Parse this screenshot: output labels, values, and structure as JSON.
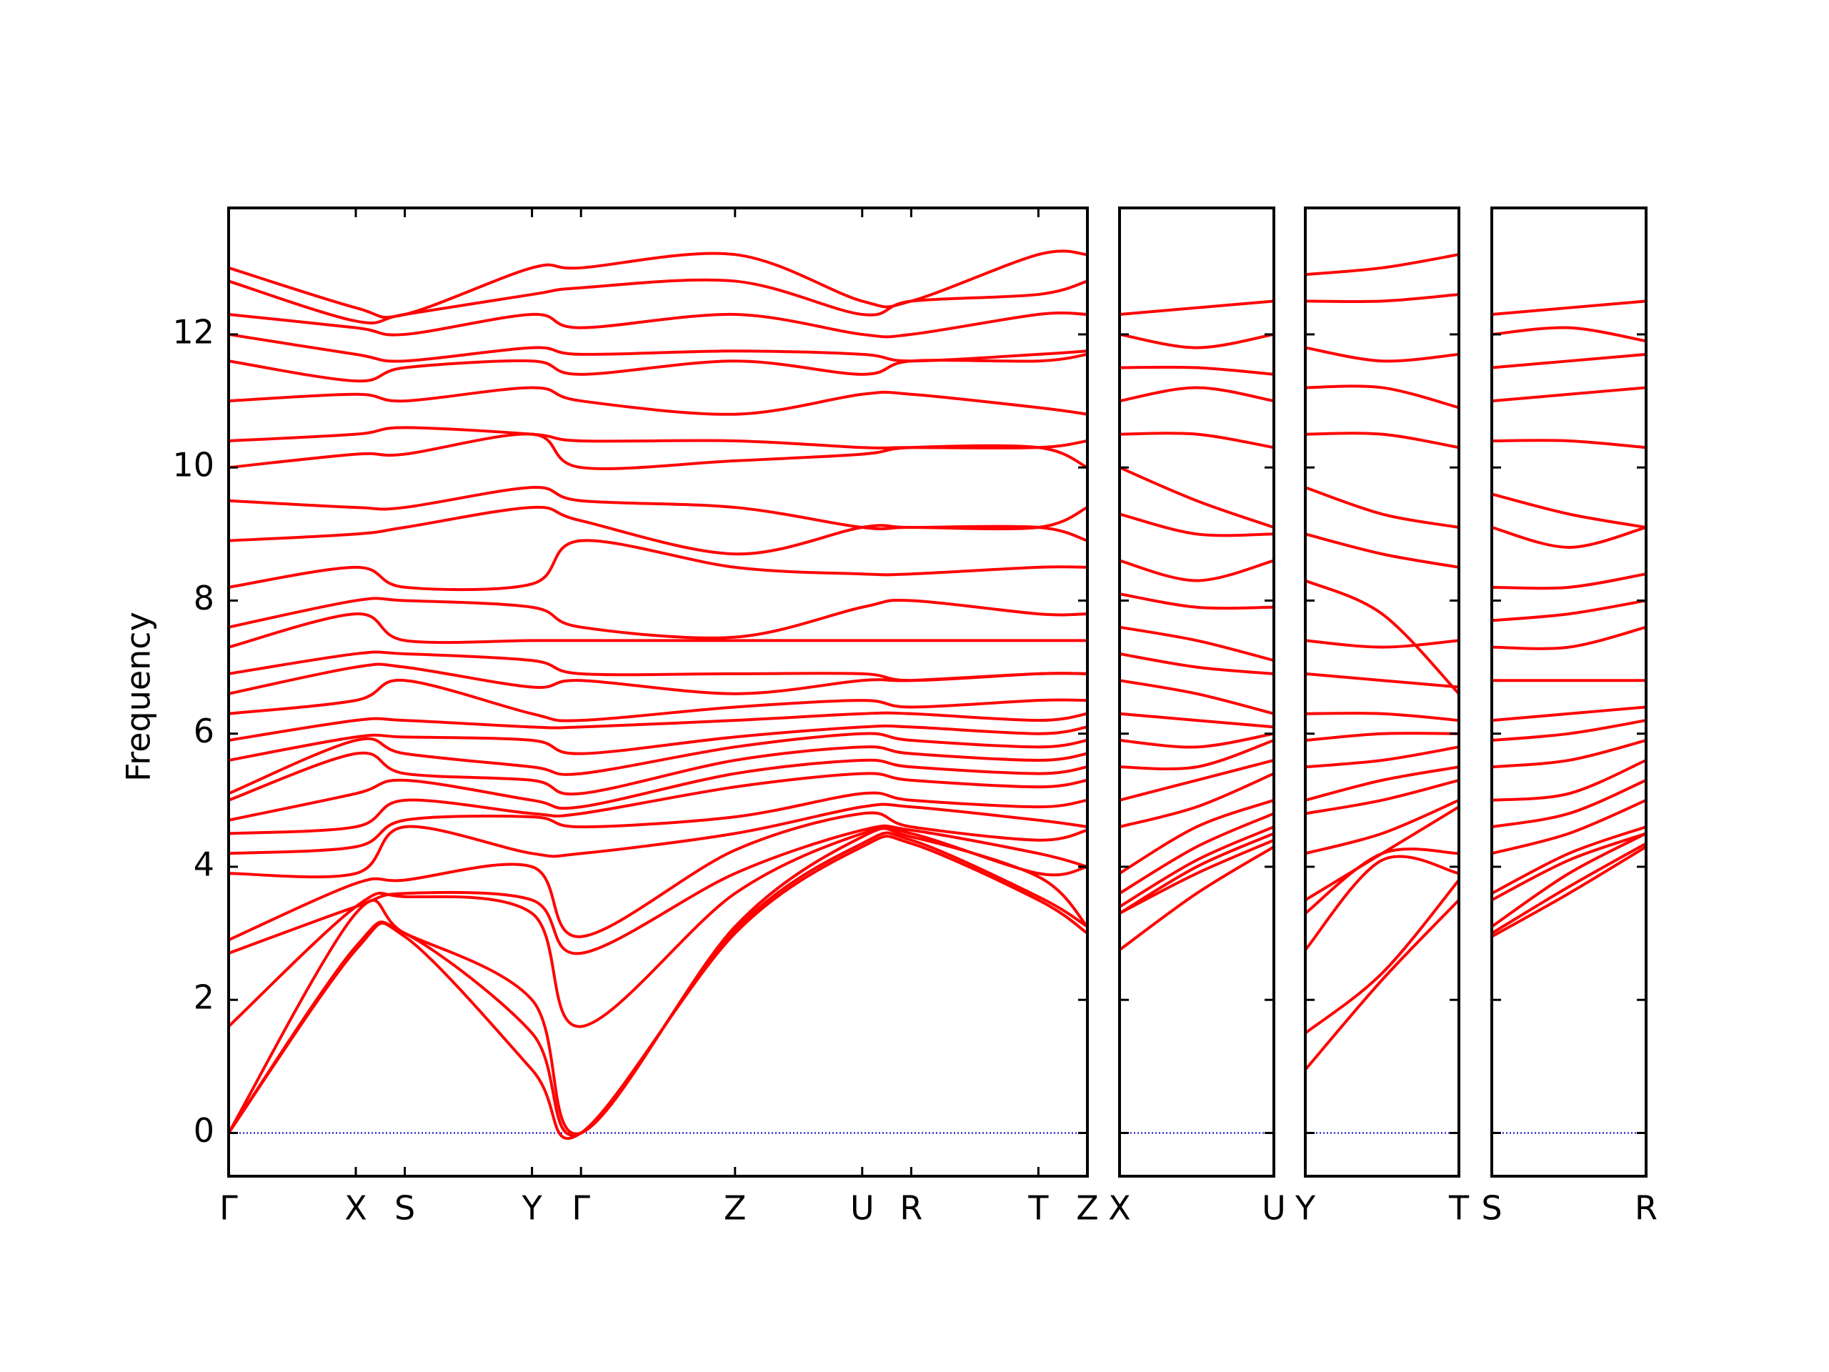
{
  "chart_data": [
    {
      "type": "line",
      "ylabel": "Frequency",
      "color": "#ff0000",
      "ylim": [
        -0.65,
        13.9
      ],
      "yticks": [
        0,
        2,
        4,
        6,
        8,
        10,
        12
      ],
      "show_ytick_labels": true,
      "hline": {
        "value": 0,
        "color": "#0000cc"
      },
      "xlim": [
        0,
        7.36
      ],
      "xticks": [
        {
          "value": 0,
          "label": "Γ"
        },
        {
          "value": 1.09,
          "label": "X"
        },
        {
          "value": 1.51,
          "label": "S"
        },
        {
          "value": 2.6,
          "label": "Y"
        },
        {
          "value": 3.02,
          "label": "Γ"
        },
        {
          "value": 4.34,
          "label": "Z"
        },
        {
          "value": 5.43,
          "label": "U"
        },
        {
          "value": 5.85,
          "label": "R"
        },
        {
          "value": 6.94,
          "label": "T"
        },
        {
          "value": 7.36,
          "label": "Z"
        }
      ],
      "x": [
        0,
        1.09,
        1.51,
        2.6,
        3.02,
        4.34,
        5.43,
        5.85,
        6.94,
        7.36
      ],
      "series": [
        {
          "values": [
            0,
            2.75,
            2.95,
            0.95,
            0,
            3.0,
            4.3,
            4.35,
            3.5,
            3.0
          ]
        },
        {
          "values": [
            0,
            2.8,
            3.0,
            1.5,
            0,
            3.05,
            4.35,
            4.4,
            3.55,
            3.1
          ]
        },
        {
          "values": [
            0,
            3.3,
            3.0,
            2.0,
            0,
            3.1,
            4.45,
            4.45,
            3.85,
            3.1
          ]
        },
        {
          "values": [
            1.6,
            3.4,
            3.55,
            3.3,
            1.6,
            3.6,
            4.5,
            4.5,
            3.9,
            4.0
          ]
        },
        {
          "values": [
            2.7,
            3.4,
            3.6,
            3.5,
            2.7,
            3.9,
            4.55,
            4.55,
            4.2,
            4.0
          ]
        },
        {
          "values": [
            2.9,
            3.75,
            3.8,
            4.0,
            2.95,
            4.25,
            4.8,
            4.6,
            4.4,
            4.55
          ]
        },
        {
          "values": [
            3.9,
            3.9,
            4.6,
            4.2,
            4.2,
            4.5,
            4.9,
            4.9,
            4.7,
            4.6
          ]
        },
        {
          "values": [
            4.2,
            4.3,
            4.7,
            4.75,
            4.6,
            4.75,
            5.1,
            5.0,
            4.9,
            5.0
          ]
        },
        {
          "values": [
            4.5,
            4.6,
            5.0,
            4.8,
            4.8,
            5.2,
            5.4,
            5.3,
            5.2,
            5.3
          ]
        },
        {
          "values": [
            4.7,
            5.1,
            5.3,
            5.0,
            4.9,
            5.4,
            5.6,
            5.5,
            5.4,
            5.5
          ]
        },
        {
          "values": [
            5.0,
            5.7,
            5.4,
            5.3,
            5.1,
            5.6,
            5.8,
            5.7,
            5.6,
            5.7
          ]
        },
        {
          "values": [
            5.1,
            5.9,
            5.7,
            5.5,
            5.4,
            5.8,
            6.0,
            5.9,
            5.8,
            5.9
          ]
        },
        {
          "values": [
            5.6,
            5.95,
            5.95,
            5.9,
            5.7,
            5.95,
            6.1,
            6.1,
            6.0,
            6.1
          ]
        },
        {
          "values": [
            5.9,
            6.2,
            6.2,
            6.1,
            6.1,
            6.2,
            6.3,
            6.3,
            6.2,
            6.3
          ]
        },
        {
          "values": [
            6.3,
            6.5,
            6.8,
            6.3,
            6.2,
            6.4,
            6.5,
            6.4,
            6.5,
            6.5
          ]
        },
        {
          "values": [
            6.6,
            7.0,
            7.0,
            6.7,
            6.8,
            6.6,
            6.8,
            6.8,
            6.9,
            6.9
          ]
        },
        {
          "values": [
            6.9,
            7.2,
            7.2,
            7.1,
            6.9,
            6.9,
            6.9,
            6.8,
            6.9,
            6.9
          ]
        },
        {
          "values": [
            7.3,
            7.8,
            7.4,
            7.4,
            7.4,
            7.4,
            7.4,
            7.4,
            7.4,
            7.4
          ]
        },
        {
          "values": [
            7.6,
            8.0,
            8.0,
            7.9,
            7.6,
            7.45,
            7.9,
            8.0,
            7.8,
            7.8
          ]
        },
        {
          "values": [
            8.2,
            8.5,
            8.2,
            8.25,
            8.9,
            8.5,
            8.4,
            8.4,
            8.5,
            8.5
          ]
        },
        {
          "values": [
            8.9,
            9.0,
            9.1,
            9.4,
            9.2,
            8.7,
            9.1,
            9.1,
            9.1,
            8.9
          ]
        },
        {
          "values": [
            9.5,
            9.4,
            9.4,
            9.7,
            9.5,
            9.4,
            9.1,
            9.1,
            9.1,
            9.4
          ]
        },
        {
          "values": [
            10.0,
            10.2,
            10.2,
            10.5,
            10.0,
            10.1,
            10.2,
            10.3,
            10.3,
            10.0
          ]
        },
        {
          "values": [
            10.4,
            10.5,
            10.6,
            10.5,
            10.4,
            10.4,
            10.3,
            10.3,
            10.3,
            10.4
          ]
        },
        {
          "values": [
            11.0,
            11.1,
            11.0,
            11.2,
            11.0,
            10.8,
            11.1,
            11.1,
            10.9,
            10.8
          ]
        },
        {
          "values": [
            11.6,
            11.3,
            11.5,
            11.6,
            11.4,
            11.6,
            11.4,
            11.6,
            11.6,
            11.7
          ]
        },
        {
          "values": [
            12.0,
            11.7,
            11.6,
            11.8,
            11.7,
            11.75,
            11.7,
            11.6,
            11.7,
            11.75
          ]
        },
        {
          "values": [
            12.3,
            12.1,
            12.0,
            12.3,
            12.1,
            12.3,
            12.0,
            12.0,
            12.3,
            12.3
          ]
        },
        {
          "values": [
            12.8,
            12.2,
            12.3,
            12.6,
            12.7,
            12.8,
            12.3,
            12.5,
            12.6,
            12.8
          ]
        },
        {
          "values": [
            13.0,
            12.4,
            12.3,
            13.0,
            13.0,
            13.2,
            12.5,
            12.5,
            13.2,
            13.2
          ]
        }
      ]
    },
    {
      "type": "line",
      "color": "#ff0000",
      "ylim": [
        -0.65,
        13.9
      ],
      "yticks": [
        0,
        2,
        4,
        6,
        8,
        10,
        12
      ],
      "show_ytick_labels": false,
      "hline": {
        "value": 0,
        "color": "#0000cc"
      },
      "xlim": [
        0,
        1.32
      ],
      "xticks": [
        {
          "value": 0,
          "label": "X"
        },
        {
          "value": 1.32,
          "label": "U"
        }
      ],
      "x": [
        0,
        0.66,
        1.32
      ],
      "series": [
        {
          "values": [
            2.75,
            3.6,
            4.3
          ]
        },
        {
          "values": [
            3.3,
            3.9,
            4.4
          ]
        },
        {
          "values": [
            3.3,
            4.0,
            4.5
          ]
        },
        {
          "values": [
            3.4,
            4.1,
            4.6
          ]
        },
        {
          "values": [
            3.6,
            4.3,
            4.8
          ]
        },
        {
          "values": [
            3.9,
            4.6,
            5.0
          ]
        },
        {
          "values": [
            4.6,
            4.9,
            5.4
          ]
        },
        {
          "values": [
            5.0,
            5.3,
            5.6
          ]
        },
        {
          "values": [
            5.5,
            5.5,
            5.9
          ]
        },
        {
          "values": [
            5.9,
            5.8,
            6.0
          ]
        },
        {
          "values": [
            6.3,
            6.2,
            6.1
          ]
        },
        {
          "values": [
            6.8,
            6.6,
            6.3
          ]
        },
        {
          "values": [
            7.2,
            7.0,
            6.9
          ]
        },
        {
          "values": [
            7.6,
            7.4,
            7.1
          ]
        },
        {
          "values": [
            8.1,
            7.9,
            7.9
          ]
        },
        {
          "values": [
            8.6,
            8.3,
            8.6
          ]
        },
        {
          "values": [
            9.3,
            9.0,
            9.0
          ]
        },
        {
          "values": [
            10.0,
            9.5,
            9.1
          ]
        },
        {
          "values": [
            10.5,
            10.5,
            10.3
          ]
        },
        {
          "values": [
            11.0,
            11.2,
            11.0
          ]
        },
        {
          "values": [
            11.5,
            11.5,
            11.4
          ]
        },
        {
          "values": [
            12.0,
            11.8,
            12.0
          ]
        },
        {
          "values": [
            12.3,
            12.4,
            12.5
          ]
        }
      ]
    },
    {
      "type": "line",
      "color": "#ff0000",
      "ylim": [
        -0.65,
        13.9
      ],
      "yticks": [
        0,
        2,
        4,
        6,
        8,
        10,
        12
      ],
      "show_ytick_labels": false,
      "hline": {
        "value": 0,
        "color": "#0000cc"
      },
      "xlim": [
        0,
        1.32
      ],
      "xticks": [
        {
          "value": 0,
          "label": "Y"
        },
        {
          "value": 1.32,
          "label": "T"
        }
      ],
      "x": [
        0,
        0.66,
        1.32
      ],
      "series": [
        {
          "values": [
            0.95,
            2.3,
            3.5
          ]
        },
        {
          "values": [
            1.5,
            2.4,
            3.8
          ]
        },
        {
          "values": [
            2.75,
            4.1,
            3.9
          ]
        },
        {
          "values": [
            3.3,
            4.2,
            4.2
          ]
        },
        {
          "values": [
            3.5,
            4.2,
            4.9
          ]
        },
        {
          "values": [
            4.2,
            4.5,
            5.0
          ]
        },
        {
          "values": [
            4.8,
            5.0,
            5.3
          ]
        },
        {
          "values": [
            5.0,
            5.3,
            5.5
          ]
        },
        {
          "values": [
            5.5,
            5.6,
            5.8
          ]
        },
        {
          "values": [
            5.9,
            6.0,
            6.0
          ]
        },
        {
          "values": [
            6.3,
            6.3,
            6.2
          ]
        },
        {
          "values": [
            6.9,
            6.8,
            6.7
          ]
        },
        {
          "values": [
            7.4,
            7.3,
            7.4
          ]
        },
        {
          "values": [
            8.3,
            7.8,
            6.6
          ]
        },
        {
          "values": [
            9.0,
            8.7,
            8.5
          ]
        },
        {
          "values": [
            9.7,
            9.3,
            9.1
          ]
        },
        {
          "values": [
            10.5,
            10.5,
            10.3
          ]
        },
        {
          "values": [
            11.2,
            11.2,
            10.9
          ]
        },
        {
          "values": [
            11.8,
            11.6,
            11.7
          ]
        },
        {
          "values": [
            12.5,
            12.5,
            12.6
          ]
        },
        {
          "values": [
            12.9,
            13.0,
            13.2
          ]
        }
      ]
    },
    {
      "type": "line",
      "color": "#ff0000",
      "ylim": [
        -0.65,
        13.9
      ],
      "yticks": [
        0,
        2,
        4,
        6,
        8,
        10,
        12
      ],
      "show_ytick_labels": false,
      "hline": {
        "value": 0,
        "color": "#0000cc"
      },
      "xlim": [
        0,
        1.32
      ],
      "xticks": [
        {
          "value": 0,
          "label": "S"
        },
        {
          "value": 1.32,
          "label": "R"
        }
      ],
      "x": [
        0,
        0.66,
        1.32
      ],
      "series": [
        {
          "values": [
            2.95,
            3.6,
            4.3
          ]
        },
        {
          "values": [
            3.0,
            3.7,
            4.35
          ]
        },
        {
          "values": [
            3.1,
            3.9,
            4.5
          ]
        },
        {
          "values": [
            3.5,
            4.1,
            4.5
          ]
        },
        {
          "values": [
            3.6,
            4.2,
            4.6
          ]
        },
        {
          "values": [
            4.2,
            4.5,
            5.0
          ]
        },
        {
          "values": [
            4.6,
            4.8,
            5.3
          ]
        },
        {
          "values": [
            5.0,
            5.1,
            5.6
          ]
        },
        {
          "values": [
            5.5,
            5.6,
            5.9
          ]
        },
        {
          "values": [
            5.9,
            6.0,
            6.2
          ]
        },
        {
          "values": [
            6.2,
            6.3,
            6.4
          ]
        },
        {
          "values": [
            6.8,
            6.8,
            6.8
          ]
        },
        {
          "values": [
            7.3,
            7.3,
            7.6
          ]
        },
        {
          "values": [
            7.7,
            7.8,
            8.0
          ]
        },
        {
          "values": [
            8.2,
            8.2,
            8.4
          ]
        },
        {
          "values": [
            9.1,
            8.8,
            9.1
          ]
        },
        {
          "values": [
            9.6,
            9.3,
            9.1
          ]
        },
        {
          "values": [
            10.4,
            10.4,
            10.3
          ]
        },
        {
          "values": [
            11.0,
            11.1,
            11.2
          ]
        },
        {
          "values": [
            11.5,
            11.6,
            11.7
          ]
        },
        {
          "values": [
            12.0,
            12.1,
            11.9
          ]
        },
        {
          "values": [
            12.3,
            12.4,
            12.5
          ]
        }
      ]
    }
  ]
}
